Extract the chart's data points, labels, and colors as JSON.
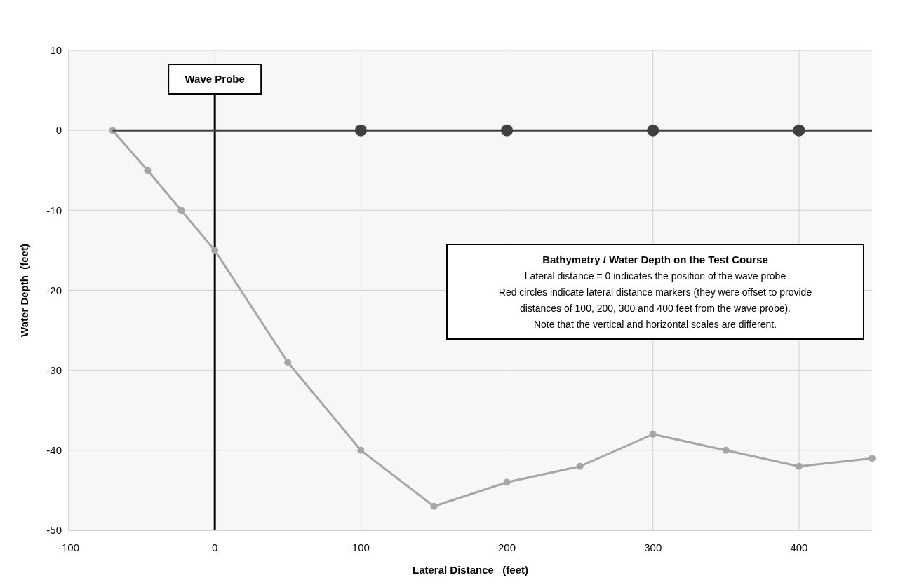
{
  "chart_data": {
    "type": "line",
    "xlabel": "Lateral Distance   (feet)",
    "ylabel": "Water Depth  (feet)",
    "xlim": [
      -100,
      450
    ],
    "xticks": [
      -100,
      0,
      100,
      200,
      300,
      400
    ],
    "ylim": [
      -50,
      10
    ],
    "yticks": [
      -50,
      -40,
      -30,
      -20,
      -10,
      0,
      10
    ],
    "grid": true,
    "series": [
      {
        "marker": "circle",
        "color": "#a6a6a6",
        "x": [
          -70,
          -46,
          -23,
          0,
          50,
          100,
          150,
          200,
          250,
          300,
          350,
          400,
          450
        ],
        "values": [
          0,
          -5,
          -10,
          -15,
          -29,
          -40,
          -47,
          -44,
          -42,
          -38,
          -40,
          -42,
          -41
        ]
      },
      {
        "marker": "none",
        "color": "#404040",
        "x": [
          -70,
          450
        ],
        "values": [
          0,
          0
        ]
      },
      {
        "type": "scatter",
        "marker": "circle",
        "color": "#404040",
        "x": [
          100,
          200,
          300,
          400
        ],
        "values": [
          0,
          0,
          0,
          0
        ]
      }
    ],
    "ref_lines": [
      {
        "axis": "x",
        "value": 0,
        "label": "Wave Probe",
        "color": "#000000"
      }
    ],
    "annotations": [
      "Bathymetry / Water Depth on the Test Course",
      "Lateral distance = 0 indicates the position of the wave probe",
      "Red circles indicate lateral distance markers (they were offset to provide",
      "distances of 100, 200, 300 and 400 feet from the wave probe).",
      "Note that the vertical and horizontal scales are different."
    ]
  }
}
